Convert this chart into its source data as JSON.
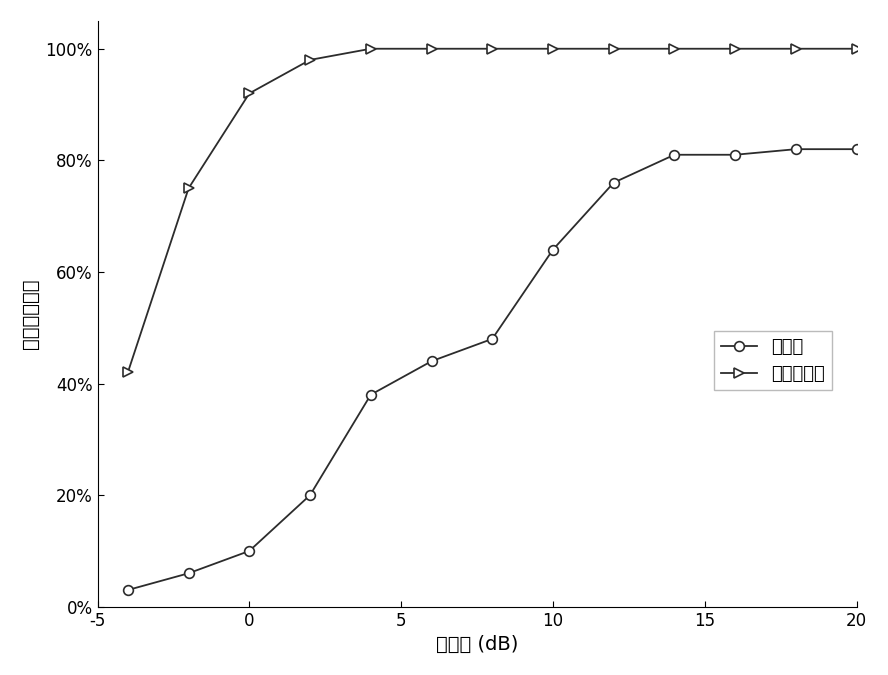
{
  "method1_x": [
    -4,
    -2,
    0,
    2,
    4,
    6,
    8,
    10,
    12,
    14,
    16,
    18,
    20
  ],
  "method1_y": [
    0.03,
    0.06,
    0.1,
    0.2,
    0.38,
    0.44,
    0.48,
    0.64,
    0.76,
    0.81,
    0.81,
    0.82,
    0.82
  ],
  "method2_x": [
    -4,
    -2,
    0,
    2,
    4,
    6,
    8,
    10,
    12,
    14,
    16,
    18,
    20
  ],
  "method2_y": [
    0.42,
    0.75,
    0.92,
    0.98,
    1.0,
    1.0,
    1.0,
    1.0,
    1.0,
    1.0,
    1.0,
    1.0,
    1.0
  ],
  "xlabel": "信噪比 (dB)",
  "ylabel": "成功执行概率",
  "legend1": "方法一",
  "legend2": "本发明方法",
  "xlim": [
    -5,
    20
  ],
  "ylim": [
    0,
    1.05
  ],
  "xticks": [
    -5,
    0,
    5,
    10,
    15,
    20
  ],
  "ytick_labels": [
    "0%",
    "20%",
    "40%",
    "60%",
    "80%",
    "100%"
  ],
  "ytick_values": [
    0,
    0.2,
    0.4,
    0.6,
    0.8,
    1.0
  ],
  "line_color": "#2c2c2c",
  "bg_color": "#ffffff",
  "grid": false,
  "marker1": "o",
  "marker2": ">",
  "markersize": 7,
  "linewidth": 1.3,
  "legend_fontsize": 13,
  "xlabel_fontsize": 14,
  "ylabel_fontsize": 14,
  "tick_fontsize": 12
}
